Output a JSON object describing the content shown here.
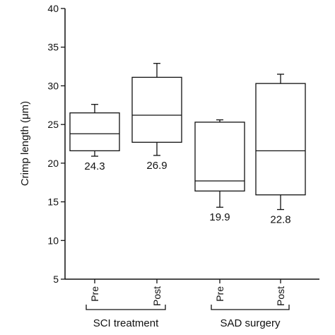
{
  "chart_data": {
    "type": "box",
    "ylabel": "Crimp length (μm)",
    "ylim": [
      5,
      40
    ],
    "yticks": [
      5,
      10,
      15,
      20,
      25,
      30,
      35,
      40
    ],
    "grid": false,
    "categories": [
      "Pre",
      "Post",
      "Pre",
      "Post"
    ],
    "groups": [
      {
        "label": "SCI treatment",
        "members": [
          0,
          1
        ]
      },
      {
        "label": "SAD surgery",
        "members": [
          2,
          3
        ]
      }
    ],
    "boxes": [
      {
        "category": "Pre",
        "whisker_low": 20.9,
        "q1": 21.6,
        "median": 23.8,
        "q3": 26.5,
        "whisker_high": 27.6,
        "label": "24.3"
      },
      {
        "category": "Post",
        "whisker_low": 21.0,
        "q1": 22.7,
        "median": 26.2,
        "q3": 31.1,
        "whisker_high": 32.9,
        "label": "26.9"
      },
      {
        "category": "Pre",
        "whisker_low": 14.3,
        "q1": 16.4,
        "median": 17.7,
        "q3": 25.3,
        "whisker_high": 25.6,
        "label": "19.9"
      },
      {
        "category": "Post",
        "whisker_low": 14.0,
        "q1": 15.9,
        "median": 21.6,
        "q3": 30.3,
        "whisker_high": 31.5,
        "label": "22.8"
      }
    ]
  }
}
